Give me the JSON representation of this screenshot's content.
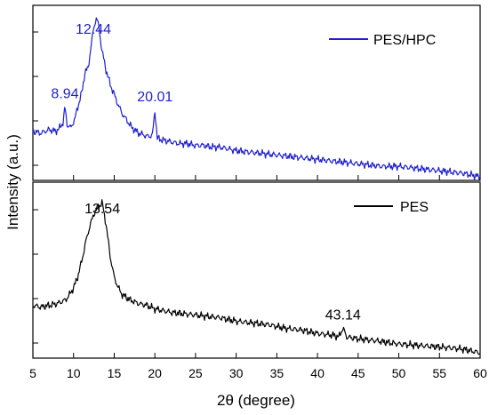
{
  "chart_data": {
    "type": "line",
    "xlabel": "2θ (degree)",
    "ylabel": "Intensity (a.u.)",
    "xlim": [
      5,
      60
    ],
    "x_ticks": [
      5,
      10,
      15,
      20,
      25,
      30,
      35,
      40,
      45,
      50,
      55,
      60
    ],
    "x_tick_labels": [
      "5",
      "10",
      "15",
      "20",
      "25",
      "30",
      "35",
      "40",
      "45",
      "50",
      "55",
      "60"
    ],
    "y_ticks_visible": false,
    "panels": [
      {
        "legend_label": "PES/HPC",
        "legend_position": "top-right",
        "color": "#1f1fd0",
        "ylim": [
          0,
          1
        ],
        "points": [
          [
            5,
            0.28
          ],
          [
            6,
            0.27
          ],
          [
            7,
            0.29
          ],
          [
            7.8,
            0.28
          ],
          [
            8.3,
            0.3
          ],
          [
            8.7,
            0.33
          ],
          [
            8.94,
            0.42
          ],
          [
            9.2,
            0.32
          ],
          [
            9.7,
            0.3
          ],
          [
            10.2,
            0.36
          ],
          [
            10.7,
            0.45
          ],
          [
            11.1,
            0.52
          ],
          [
            11.4,
            0.62
          ],
          [
            11.8,
            0.64
          ],
          [
            12.1,
            0.75
          ],
          [
            12.44,
            0.86
          ],
          [
            12.8,
            0.93
          ],
          [
            13.1,
            0.88
          ],
          [
            13.5,
            0.74
          ],
          [
            14,
            0.63
          ],
          [
            14.5,
            0.55
          ],
          [
            15,
            0.49
          ],
          [
            15.5,
            0.43
          ],
          [
            16,
            0.38
          ],
          [
            16.6,
            0.34
          ],
          [
            17.2,
            0.3
          ],
          [
            18,
            0.27
          ],
          [
            18.6,
            0.26
          ],
          [
            19.2,
            0.25
          ],
          [
            19.7,
            0.26
          ],
          [
            20.01,
            0.4
          ],
          [
            20.3,
            0.24
          ],
          [
            21,
            0.23
          ],
          [
            22,
            0.22
          ],
          [
            23,
            0.21
          ],
          [
            24,
            0.21
          ],
          [
            25,
            0.2
          ],
          [
            26,
            0.2
          ],
          [
            27,
            0.19
          ],
          [
            28,
            0.19
          ],
          [
            29,
            0.18
          ],
          [
            30,
            0.17
          ],
          [
            32,
            0.16
          ],
          [
            34,
            0.15
          ],
          [
            36,
            0.14
          ],
          [
            38,
            0.13
          ],
          [
            40,
            0.12
          ],
          [
            42,
            0.11
          ],
          [
            44,
            0.1
          ],
          [
            46,
            0.09
          ],
          [
            48,
            0.08
          ],
          [
            50,
            0.08
          ],
          [
            52,
            0.07
          ],
          [
            54,
            0.06
          ],
          [
            56,
            0.05
          ],
          [
            58,
            0.04
          ],
          [
            60,
            0.02
          ]
        ],
        "annotations": [
          {
            "x": 8.94,
            "text": "8.94"
          },
          {
            "x": 12.44,
            "text": "12.44"
          },
          {
            "x": 20.01,
            "text": "20.01"
          }
        ]
      },
      {
        "legend_label": "PES",
        "legend_position": "top-right",
        "color": "#000000",
        "ylim": [
          0,
          1
        ],
        "points": [
          [
            5,
            0.3
          ],
          [
            6,
            0.29
          ],
          [
            7,
            0.3
          ],
          [
            8,
            0.31
          ],
          [
            9,
            0.33
          ],
          [
            9.5,
            0.36
          ],
          [
            10,
            0.4
          ],
          [
            10.5,
            0.46
          ],
          [
            11,
            0.55
          ],
          [
            11.5,
            0.66
          ],
          [
            12,
            0.75
          ],
          [
            12.5,
            0.82
          ],
          [
            13,
            0.86
          ],
          [
            13.54,
            0.88
          ],
          [
            14,
            0.76
          ],
          [
            14.5,
            0.58
          ],
          [
            15,
            0.46
          ],
          [
            15.5,
            0.4
          ],
          [
            16,
            0.36
          ],
          [
            17,
            0.33
          ],
          [
            18,
            0.31
          ],
          [
            19,
            0.3
          ],
          [
            20,
            0.28
          ],
          [
            22,
            0.26
          ],
          [
            24,
            0.25
          ],
          [
            26,
            0.24
          ],
          [
            28,
            0.23
          ],
          [
            30,
            0.21
          ],
          [
            32,
            0.2
          ],
          [
            34,
            0.19
          ],
          [
            36,
            0.17
          ],
          [
            38,
            0.16
          ],
          [
            40,
            0.14
          ],
          [
            42,
            0.13
          ],
          [
            42.6,
            0.12
          ],
          [
            43.14,
            0.17
          ],
          [
            43.6,
            0.12
          ],
          [
            45,
            0.11
          ],
          [
            47,
            0.1
          ],
          [
            50,
            0.08
          ],
          [
            53,
            0.07
          ],
          [
            56,
            0.06
          ],
          [
            58,
            0.05
          ],
          [
            60,
            0.03
          ]
        ],
        "annotations": [
          {
            "x": 13.54,
            "text": "13.54"
          },
          {
            "x": 43.14,
            "text": "43.14"
          }
        ]
      }
    ]
  }
}
